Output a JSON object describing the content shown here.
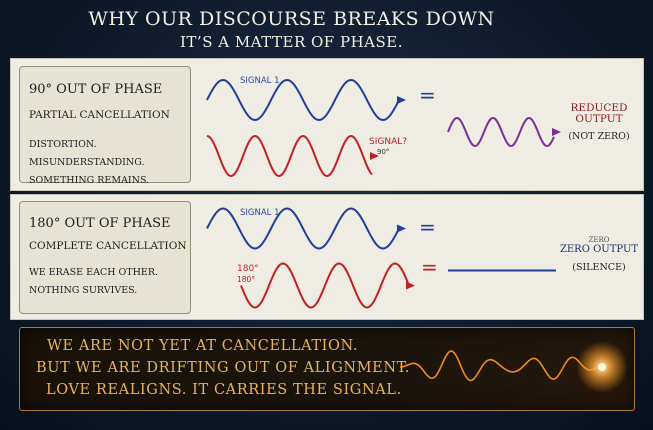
{
  "header": {
    "title": "WHY OUR DISCOURSE BREAKS DOWN",
    "subtitle": "IT’S A MATTER OF PHASE."
  },
  "panels": [
    {
      "title": "90° OUT OF PHASE",
      "subtitle": "PARTIAL CANCELLATION",
      "note_line1": "DISTORTION. MISUNDERSTANDING.",
      "note_line2": "SOMETHING REMAINS.",
      "signal1_label": "SIGNAL 1",
      "signal2_label": "SIGNAL?",
      "signal2_sublabel": "90°",
      "equals": "=",
      "result_label_line1": "REDUCED",
      "result_label_line2": "OUTPUT",
      "result_note": "(NOT ZERO)"
    },
    {
      "title": "180° OUT OF PHASE",
      "subtitle": "COMPLETE CANCELLATION",
      "note_line1": "WE ERASE EACH OTHER.",
      "note_line2": "NOTHING SURVIVES.",
      "signal1_label": "SIGNAL 1",
      "signal2_label_line1": "180°",
      "signal2_label_line2": "180°",
      "equals": "=",
      "result_label_small": "ZERO",
      "result_label": "ZERO OUTPUT",
      "result_note": "(SILENCE)"
    }
  ],
  "banner": {
    "line1": "WE ARE NOT YET AT CANCELLATION.",
    "line2": "BUT WE ARE DRIFTING OUT OF ALIGNMENT.",
    "line3": "LOVE REALIGNS. IT CARRIES THE SIGNAL."
  },
  "colors": {
    "signal1": "#1f3f9a",
    "signal2": "#c21f25",
    "result": "#7a2f98",
    "banner_text": "#e7b45a",
    "banner_wave": "#f08a1c"
  }
}
